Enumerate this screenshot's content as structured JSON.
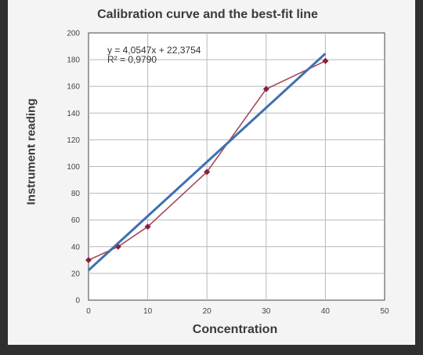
{
  "chart_data": {
    "type": "line",
    "title": "Calibration curve and the best-fit line",
    "xlabel": "Concentration",
    "ylabel": "Instrument reading",
    "xlim": [
      0,
      50
    ],
    "ylim": [
      0,
      200
    ],
    "xticks": [
      0,
      10,
      20,
      30,
      40,
      50
    ],
    "yticks": [
      0,
      20,
      40,
      60,
      80,
      100,
      120,
      140,
      160,
      180,
      200
    ],
    "grid": true,
    "series": [
      {
        "values": [
          {
            "x": 0,
            "y": 30
          },
          {
            "x": 5,
            "y": 40
          },
          {
            "x": 10,
            "y": 55
          },
          {
            "x": 20,
            "y": 96
          },
          {
            "x": 30,
            "y": 158
          },
          {
            "x": 40,
            "y": 179
          }
        ],
        "color": "#a44a5a",
        "marker_color": "#8a1f3a"
      }
    ],
    "trendline": {
      "slope": 4.0547,
      "intercept": 22.3754,
      "x_range": [
        0,
        40
      ],
      "color": "#3f6fb0"
    },
    "annotations": [
      "y = 4,0547x + 22,3754",
      "R² = 0,9790"
    ]
  }
}
